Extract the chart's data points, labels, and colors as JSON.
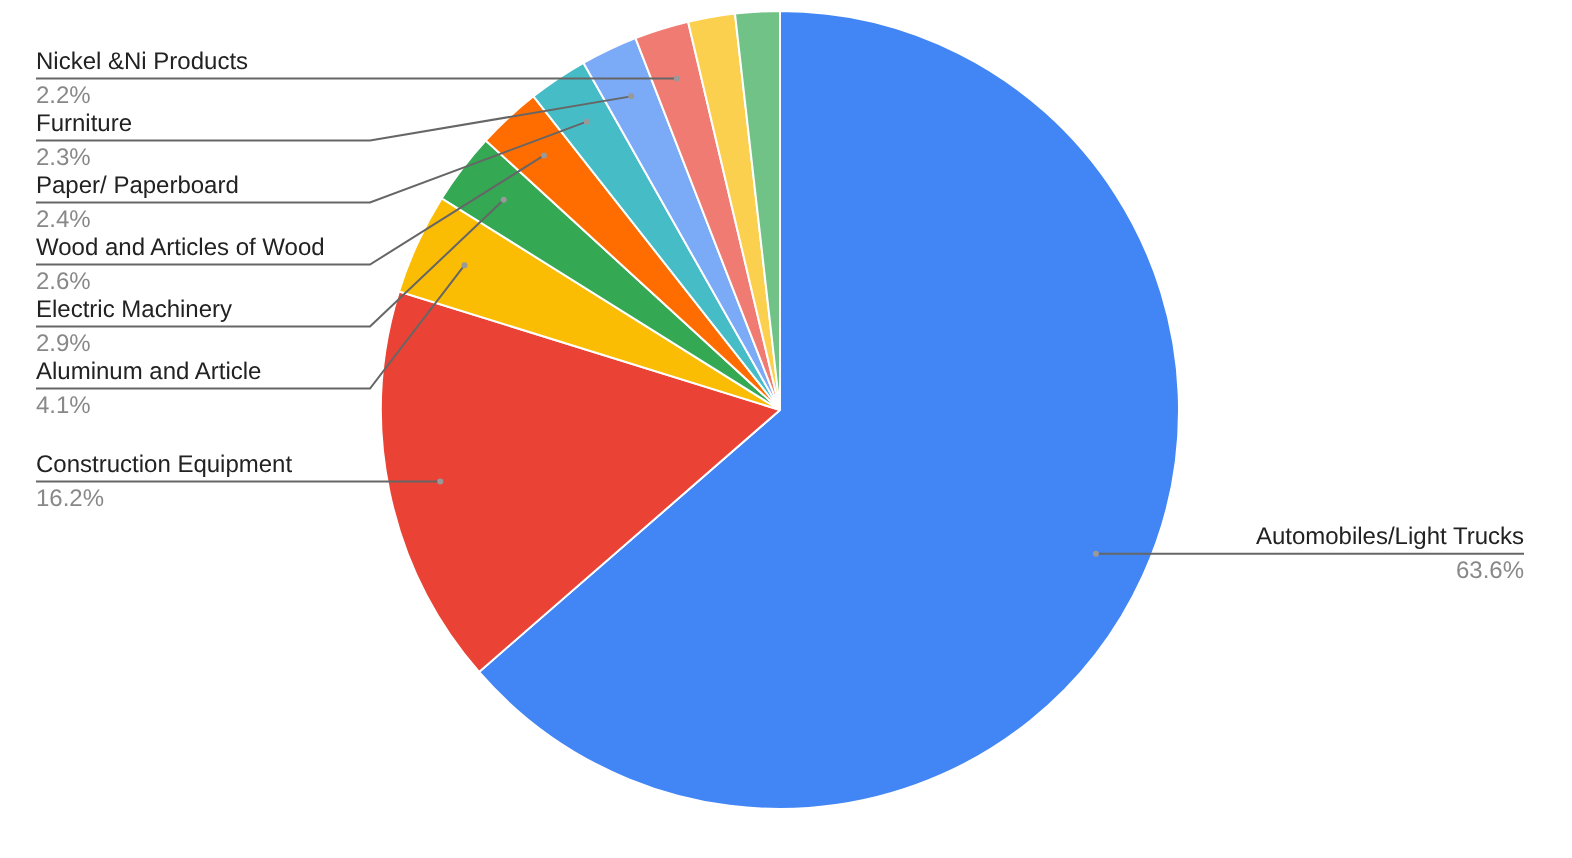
{
  "chart_data": {
    "type": "pie",
    "categories": [
      "Automobiles/Light Trucks",
      "Construction Equipment",
      "Aluminum and Article",
      "Electric Machinery",
      "Wood and Articles of Wood",
      "Paper/ Paperboard",
      "Furniture",
      "Nickel &Ni Products",
      null,
      null
    ],
    "values": [
      63.6,
      16.2,
      4.1,
      2.9,
      2.6,
      2.4,
      2.3,
      2.2,
      1.9,
      1.8
    ],
    "value_labels": [
      "63.6%",
      "16.2%",
      "4.1%",
      "2.9%",
      "2.6%",
      "2.4%",
      "2.3%",
      "2.2%",
      null,
      null
    ],
    "colors": [
      "#4285f4",
      "#ea4335",
      "#fbbc04",
      "#34a853",
      "#ff6d01",
      "#46bdc6",
      "#7baaf7",
      "#f07b72",
      "#fcd04f",
      "#71c287"
    ],
    "legend": false
  }
}
